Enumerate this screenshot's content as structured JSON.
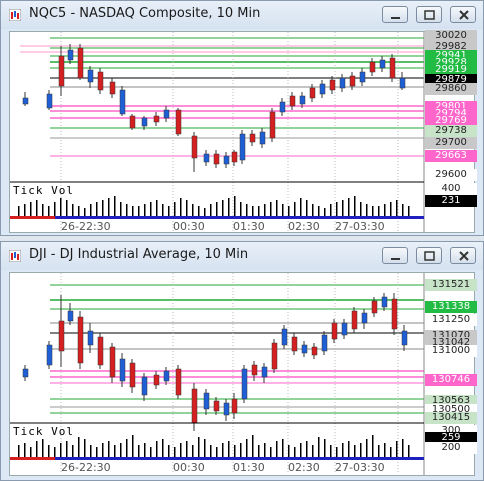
{
  "windows": [
    {
      "title": "NQC5 - NASDAQ Composite, 10 Min",
      "price_labels": [
        {
          "text": "30020",
          "bg": "#c8c8c8",
          "fg": "#222"
        },
        {
          "text": "29982",
          "bg": "#c8c8c8",
          "fg": "#222"
        },
        {
          "text": "29941",
          "bg": "#22bb44",
          "fg": "#fff"
        },
        {
          "text": "29928",
          "bg": "#22bb44",
          "fg": "#fff"
        },
        {
          "text": "29919",
          "bg": "#22bb44",
          "fg": "#fff"
        },
        {
          "text": "29879",
          "bg": "#000000",
          "fg": "#fff"
        },
        {
          "text": "29860",
          "bg": "#c8c8c8",
          "fg": "#222"
        },
        {
          "text": "29801",
          "bg": "#ff66cc",
          "fg": "#fff"
        },
        {
          "text": "29794",
          "bg": "#ff66cc",
          "fg": "#fff"
        },
        {
          "text": "29769",
          "bg": "#ff66cc",
          "fg": "#fff"
        },
        {
          "text": "29738",
          "bg": "#c8e4c8",
          "fg": "#222"
        },
        {
          "text": "29700",
          "bg": "#c8c8c8",
          "fg": "#222"
        },
        {
          "text": "29663",
          "bg": "#ff66cc",
          "fg": "#fff"
        },
        {
          "text": "29600",
          "bg": "#ffffff",
          "fg": "#222"
        }
      ],
      "vol_label": "Tick Vol",
      "vol_axis": "400",
      "vol_value": "231",
      "time_labels": [
        "26-22:30",
        "00:30",
        "01:30",
        "02:30",
        "27-03:30"
      ]
    },
    {
      "title": "DJI - DJ Industrial Average, 10 Min",
      "price_labels": [
        {
          "text": "131521",
          "bg": "#c8e4c8",
          "fg": "#222"
        },
        {
          "text": "131338",
          "bg": "#22bb44",
          "fg": "#fff"
        },
        {
          "text": "131250",
          "bg": "#ffffff",
          "fg": "#222"
        },
        {
          "text": "131070",
          "bg": "#c8c8c8",
          "fg": "#222"
        },
        {
          "text": "131042",
          "bg": "#c8c8c8",
          "fg": "#222"
        },
        {
          "text": "131000",
          "bg": "#ffffff",
          "fg": "#222"
        },
        {
          "text": "130746",
          "bg": "#ff66cc",
          "fg": "#fff"
        },
        {
          "text": "130563",
          "bg": "#c8e4c8",
          "fg": "#222"
        },
        {
          "text": "130500",
          "bg": "#ffffff",
          "fg": "#222"
        },
        {
          "text": "130415",
          "bg": "#c8e4c8",
          "fg": "#222"
        }
      ],
      "vol_label": "Tick Vol",
      "vol_axis_top": "300",
      "vol_value": "259",
      "vol_axis_bottom": "200",
      "time_labels": [
        "26-22:30",
        "00:30",
        "01:30",
        "02:30",
        "27-03:30"
      ]
    }
  ],
  "colors": {
    "up": "#1f5fd6",
    "down": "#d42020",
    "green_line": "#22aa33",
    "pink_line": "#ff66cc",
    "grid": "#999999"
  }
}
